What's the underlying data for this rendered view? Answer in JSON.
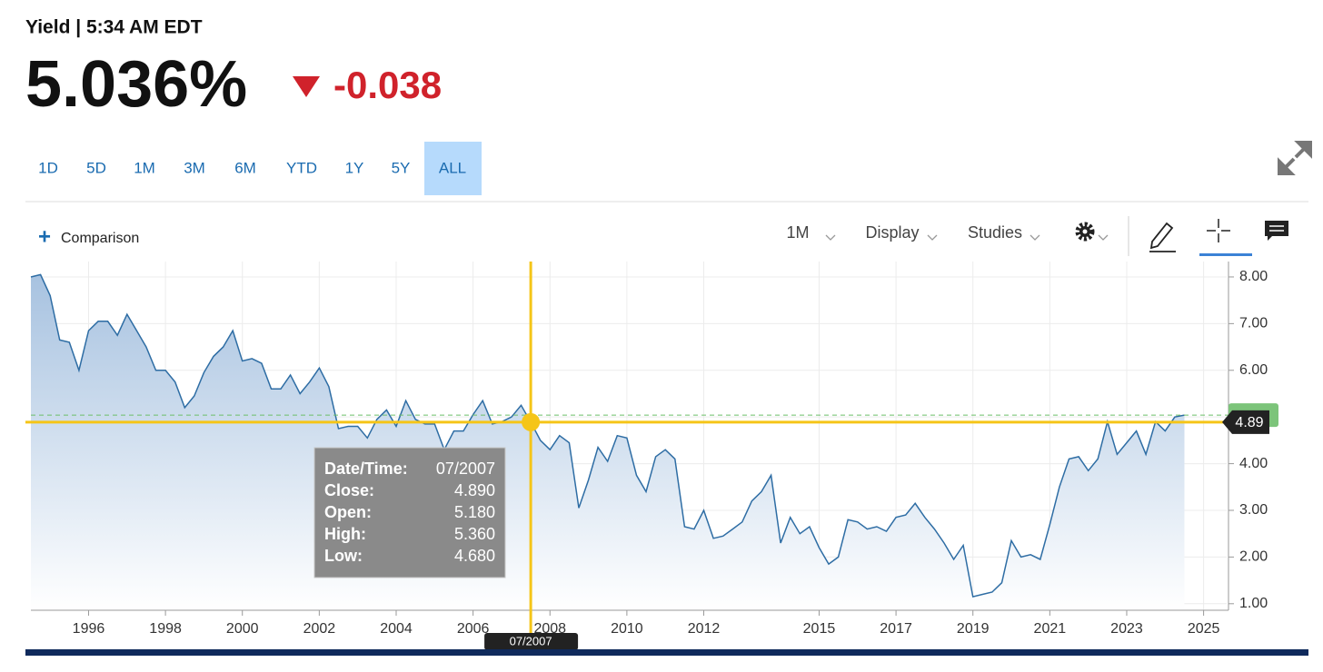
{
  "header": {
    "title": "Yield | 5:34 AM EDT",
    "price": "5.036%",
    "change": "-0.038"
  },
  "ranges": {
    "options": [
      "1D",
      "5D",
      "1M",
      "3M",
      "6M",
      "YTD",
      "1Y",
      "5Y",
      "ALL"
    ],
    "active": "ALL"
  },
  "toolbar": {
    "comparison": "Comparison",
    "interval": "1M",
    "display": "Display",
    "studies": "Studies"
  },
  "chart_data": {
    "type": "area",
    "x": [
      1994.5,
      1994.75,
      1995,
      1995.25,
      1995.5,
      1995.75,
      1996,
      1996.25,
      1996.5,
      1996.75,
      1997,
      1997.25,
      1997.5,
      1997.75,
      1998,
      1998.25,
      1998.5,
      1998.75,
      1999,
      1999.25,
      1999.5,
      1999.75,
      2000,
      2000.25,
      2000.5,
      2000.75,
      2001,
      2001.25,
      2001.5,
      2001.75,
      2002,
      2002.25,
      2002.5,
      2002.75,
      2003,
      2003.25,
      2003.5,
      2003.75,
      2004,
      2004.25,
      2004.5,
      2004.75,
      2005,
      2005.25,
      2005.5,
      2005.75,
      2006,
      2006.25,
      2006.5,
      2006.75,
      2007,
      2007.25,
      2007.5,
      2007.75,
      2008,
      2008.25,
      2008.5,
      2008.75,
      2009,
      2009.25,
      2009.5,
      2009.75,
      2010,
      2010.25,
      2010.5,
      2010.75,
      2011,
      2011.25,
      2011.5,
      2011.75,
      2012,
      2012.25,
      2012.5,
      2012.75,
      2013,
      2013.25,
      2013.5,
      2013.75,
      2014,
      2014.25,
      2014.5,
      2014.75,
      2015,
      2015.25,
      2015.5,
      2015.75,
      2016,
      2016.25,
      2016.5,
      2016.75,
      2017,
      2017.25,
      2017.5,
      2017.75,
      2018,
      2018.25,
      2018.5,
      2018.75,
      2019,
      2019.25,
      2019.5,
      2019.75,
      2020,
      2020.25,
      2020.5,
      2020.75,
      2021,
      2021.25,
      2021.5,
      2021.75,
      2022,
      2022.25,
      2022.5,
      2022.75,
      2023,
      2023.25,
      2023.5,
      2023.75,
      2024,
      2024.25,
      2024.5
    ],
    "values": [
      8.0,
      8.05,
      7.6,
      6.65,
      6.6,
      6.0,
      6.85,
      7.05,
      7.05,
      6.75,
      7.2,
      6.85,
      6.5,
      6.0,
      6.0,
      5.75,
      5.2,
      5.45,
      5.95,
      6.3,
      6.5,
      6.85,
      6.2,
      6.25,
      6.15,
      5.6,
      5.6,
      5.9,
      5.5,
      5.75,
      6.05,
      5.65,
      4.75,
      4.8,
      4.8,
      4.55,
      4.95,
      5.15,
      4.8,
      5.35,
      4.95,
      4.85,
      4.85,
      4.3,
      4.7,
      4.7,
      5.05,
      5.35,
      4.85,
      4.9,
      5.0,
      5.25,
      4.89,
      4.5,
      4.3,
      4.6,
      4.45,
      3.05,
      3.65,
      4.35,
      4.05,
      4.6,
      4.55,
      3.75,
      3.4,
      4.15,
      4.3,
      4.1,
      2.65,
      2.6,
      3.0,
      2.4,
      2.45,
      2.6,
      2.75,
      3.2,
      3.4,
      3.75,
      2.3,
      2.85,
      2.5,
      2.65,
      2.2,
      1.85,
      2.0,
      2.8,
      2.75,
      2.6,
      2.65,
      2.55,
      2.85,
      2.9,
      3.15,
      2.85,
      2.6,
      2.3,
      1.95,
      2.25,
      1.15,
      1.2,
      1.25,
      1.45,
      2.35,
      2.0,
      2.05,
      1.95,
      2.7,
      3.5,
      4.1,
      4.15,
      3.85,
      4.1,
      4.9,
      4.2,
      4.45,
      4.7,
      4.2,
      4.9,
      4.7,
      5.0,
      5.04
    ],
    "color": "#2e6da4",
    "xlim": [
      1994.5,
      2025.6
    ],
    "xticks": [
      1996,
      1998,
      2000,
      2002,
      2004,
      2006,
      2008,
      2010,
      2012,
      2015,
      2017,
      2019,
      2021,
      2023,
      2025
    ],
    "ylim": [
      0.86,
      8.33
    ],
    "yticks": [
      {
        "value": 1,
        "label": "1.00"
      },
      {
        "value": 2,
        "label": "2.00"
      },
      {
        "value": 3,
        "label": "3.00"
      },
      {
        "value": 4,
        "label": "4.00"
      },
      {
        "value": 5,
        "label": "5.00"
      },
      {
        "value": 6,
        "label": "6.00"
      },
      {
        "value": 7,
        "label": "7.00"
      },
      {
        "value": 8,
        "label": "8.00"
      }
    ],
    "grid": true,
    "crosshair": {
      "x": 2007.5,
      "y": 4.89,
      "x_label": "07/2007"
    },
    "tooltip": [
      [
        "Date/Time:",
        "07/2007"
      ],
      [
        "Close:",
        "4.890"
      ],
      [
        "Open:",
        "5.180"
      ],
      [
        "High:",
        "5.360"
      ],
      [
        "Low:",
        "4.680"
      ]
    ]
  }
}
